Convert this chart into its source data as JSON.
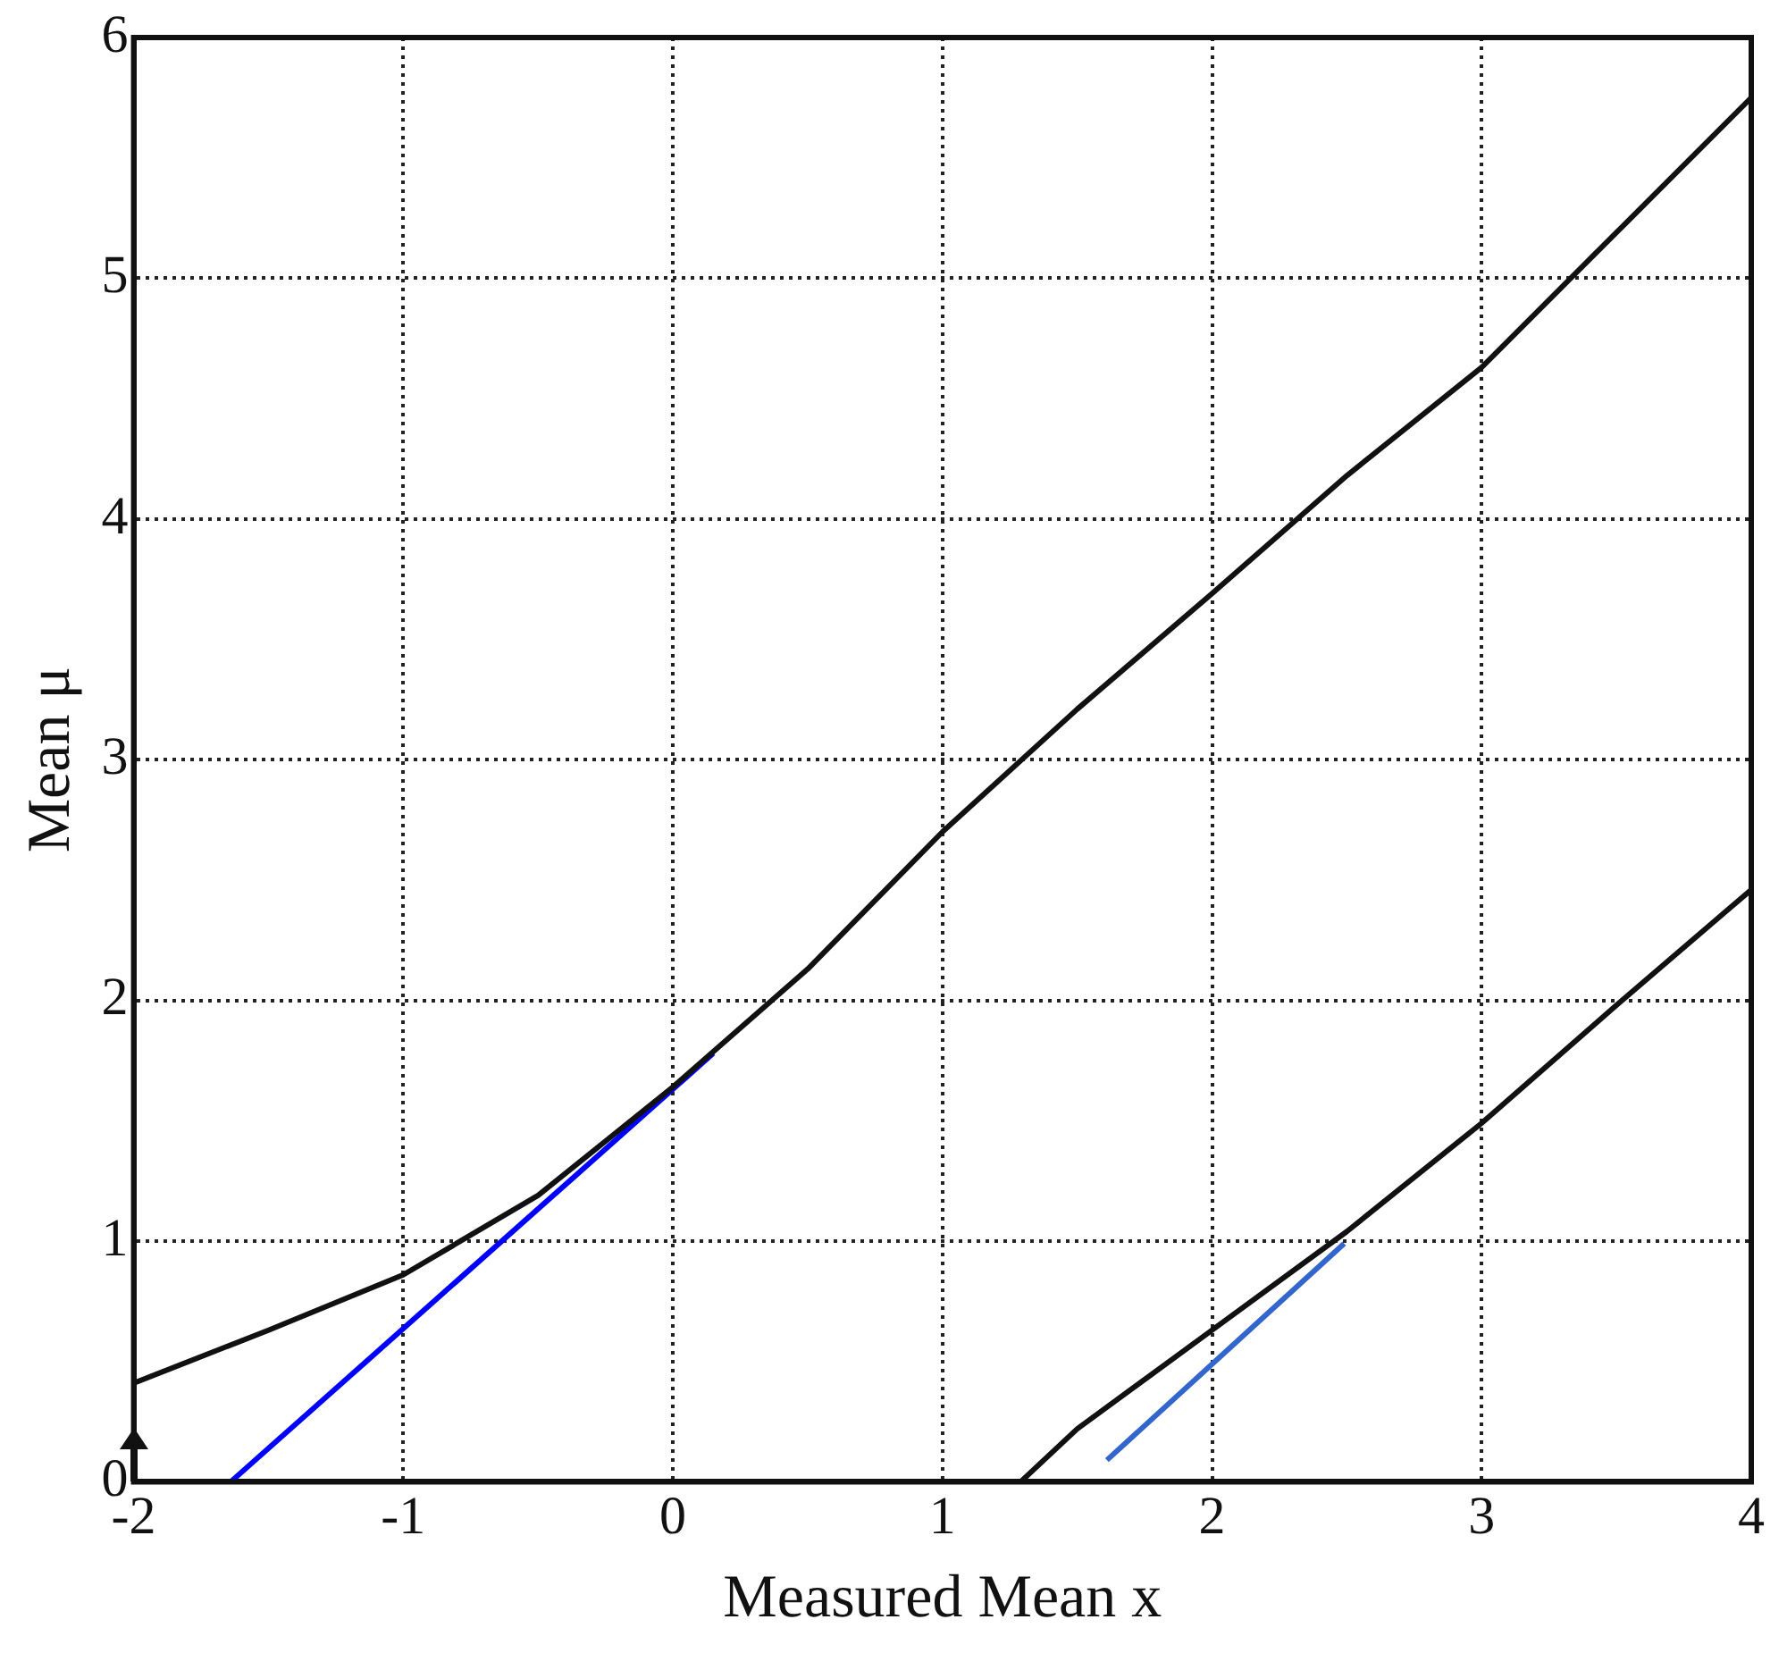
{
  "chart_data": {
    "type": "line",
    "xlabel": "Measured Mean x",
    "ylabel": "Mean μ",
    "xlim": [
      -2,
      4
    ],
    "ylim": [
      0,
      6
    ],
    "xticks": [
      -2,
      -1,
      0,
      1,
      2,
      3,
      4
    ],
    "yticks": [
      0,
      1,
      2,
      3,
      4,
      5,
      6
    ],
    "grid": true,
    "legend": false,
    "marker": "none",
    "line_style": "solid",
    "series": [
      {
        "color": "#111111",
        "x": [
          -2,
          -1.5,
          -1,
          -0.5,
          0,
          0.5,
          1,
          1.5,
          2,
          2.5,
          3,
          3.5,
          4
        ],
        "values": [
          0.41,
          0.63,
          0.86,
          1.19,
          1.64,
          2.13,
          2.7,
          3.21,
          3.69,
          4.18,
          4.63,
          5.19,
          5.75
        ]
      },
      {
        "color": "#111111",
        "x": [
          1.29,
          1.5,
          2,
          2.5,
          3,
          3.5,
          4
        ],
        "values": [
          0,
          0.22,
          0.63,
          1.04,
          1.49,
          1.98,
          2.46
        ]
      },
      {
        "color": "#0000ff",
        "x": [
          -1.64,
          0.15
        ],
        "values": [
          0,
          1.78
        ]
      },
      {
        "color": "#3366cc",
        "x": [
          1.61,
          2.49
        ],
        "values": [
          0.09,
          0.99
        ]
      }
    ]
  }
}
